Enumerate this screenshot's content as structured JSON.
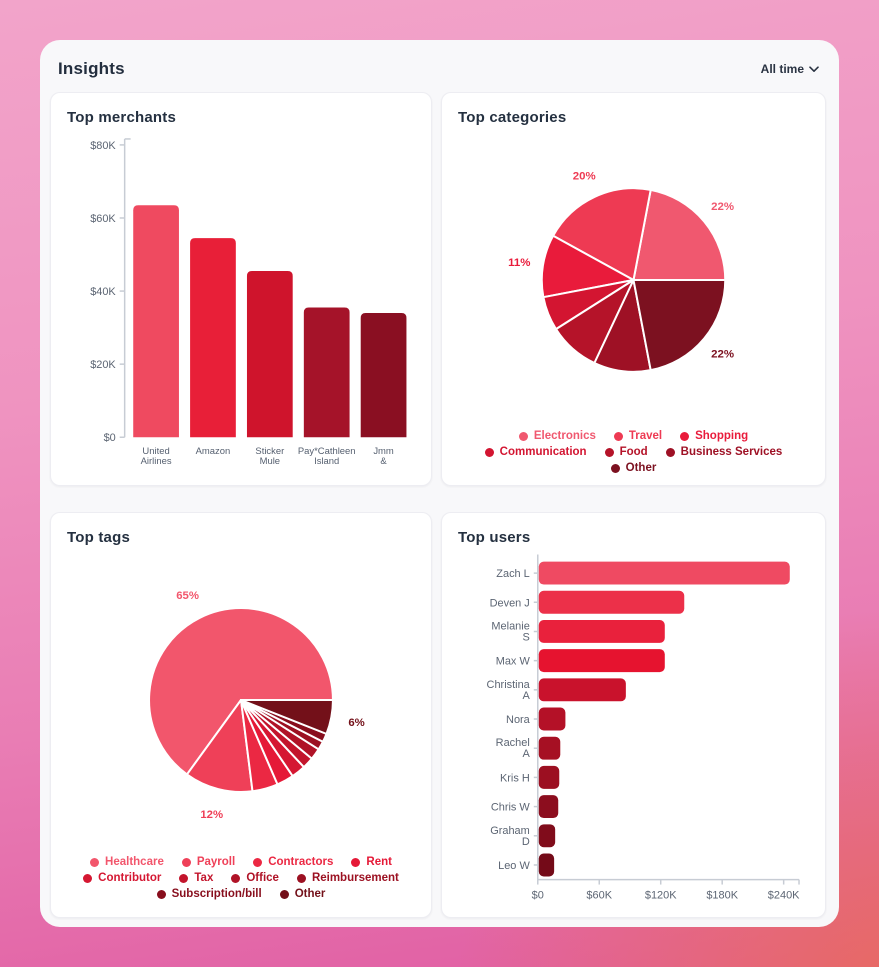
{
  "header": {
    "title": "Insights",
    "time_range": "All time"
  },
  "cards": {
    "merchants": {
      "title": "Top merchants"
    },
    "categories": {
      "title": "Top categories"
    },
    "tags": {
      "title": "Top tags"
    },
    "users": {
      "title": "Top users"
    }
  },
  "colors": {
    "panel_bg": "#F8F8FA",
    "card_bg": "#FFFFFF",
    "title_text": "#243040",
    "axis_text": "#5C6573",
    "accent_lightest": "#F2566C",
    "accent_darkest": "#740A18"
  },
  "chart_data": [
    {
      "id": "merchants",
      "type": "bar",
      "title": "Top merchants",
      "categories": [
        "United Airlines",
        "Amazon",
        "Sticker Mule",
        "Pay*Cathleen Island",
        "Jmm &"
      ],
      "category_lines": [
        [
          "United",
          "Airlines"
        ],
        [
          "Amazon"
        ],
        [
          "Sticker",
          "Mule"
        ],
        [
          "Pay*Cathleen",
          "Island"
        ],
        [
          "Jmm",
          "&"
        ]
      ],
      "values": [
        63.5,
        54.5,
        45.5,
        35.5,
        34
      ],
      "unit": "USD thousands",
      "ylim": [
        0,
        80
      ],
      "ytick_values": [
        0,
        20,
        40,
        60,
        80
      ],
      "ytick_labels": [
        "$0",
        "$20K",
        "$40K",
        "$60K",
        "$80K"
      ],
      "bar_colors": [
        "#EF4A60",
        "#E81F38",
        "#CF142C",
        "#A51329",
        "#8A0F22"
      ],
      "grid": false
    },
    {
      "id": "categories",
      "type": "pie",
      "title": "Top categories",
      "start_angle_deg_ccw_from_east": 0,
      "slices": [
        {
          "label": "Electronics",
          "value": 22,
          "color": "#F0586F",
          "display": "22%"
        },
        {
          "label": "Travel",
          "value": 20,
          "color": "#EE3A53",
          "display": "20%"
        },
        {
          "label": "Shopping",
          "value": 11,
          "color": "#E91B3B",
          "display": "11%"
        },
        {
          "label": "Communication",
          "value": 6,
          "color": "#D31531",
          "display": ""
        },
        {
          "label": "Food",
          "value": 9,
          "color": "#B51329",
          "display": ""
        },
        {
          "label": "Business Services",
          "value": 10,
          "color": "#9E1125",
          "display": ""
        },
        {
          "label": "Other",
          "value": 22,
          "color": "#7C1120",
          "display": "22%"
        }
      ],
      "legend_position": "bottom"
    },
    {
      "id": "tags",
      "type": "pie",
      "title": "Top tags",
      "start_angle_deg_ccw_from_east": 0,
      "slices": [
        {
          "label": "Healthcare",
          "value": 65,
          "color": "#F2566C",
          "display": "65%"
        },
        {
          "label": "Payroll",
          "value": 12,
          "color": "#EF4058",
          "display": "12%"
        },
        {
          "label": "Contractors",
          "value": 4.5,
          "color": "#EB2843",
          "display": ""
        },
        {
          "label": "Rent",
          "value": 3,
          "color": "#E51937",
          "display": ""
        },
        {
          "label": "Contributor",
          "value": 2.5,
          "color": "#D51732",
          "display": ""
        },
        {
          "label": "Tax",
          "value": 2,
          "color": "#C3152C",
          "display": ""
        },
        {
          "label": "Office",
          "value": 2,
          "color": "#B01327",
          "display": ""
        },
        {
          "label": "Reimbursement",
          "value": 1.5,
          "color": "#9C1122",
          "display": ""
        },
        {
          "label": "Subscription/bill",
          "value": 1.5,
          "color": "#880E1D",
          "display": ""
        },
        {
          "label": "Other",
          "value": 6,
          "color": "#731019",
          "display": "6%"
        }
      ],
      "legend_position": "bottom"
    },
    {
      "id": "users",
      "type": "bar-horizontal",
      "title": "Top users",
      "categories": [
        "Zach L",
        "Deven J",
        "Melanie S",
        "Max W",
        "Christina A",
        "Nora",
        "Rachel A",
        "Kris H",
        "Chris W",
        "Graham D",
        "Leo W"
      ],
      "category_lines": [
        [
          "Zach L"
        ],
        [
          "Deven J"
        ],
        [
          "Melanie",
          "S"
        ],
        [
          "Max W"
        ],
        [
          "Christina",
          "A"
        ],
        [
          "Nora"
        ],
        [
          "Rachel",
          "A"
        ],
        [
          "Kris H"
        ],
        [
          "Chris W"
        ],
        [
          "Graham",
          "D"
        ],
        [
          "Leo W"
        ]
      ],
      "values": [
        245,
        142,
        123,
        123,
        85,
        26,
        21,
        20,
        19,
        16,
        15
      ],
      "unit": "USD thousands",
      "xlim": [
        0,
        255
      ],
      "xtick_values": [
        0,
        60,
        120,
        180,
        240
      ],
      "xtick_labels": [
        "$0",
        "$60K",
        "$120K",
        "$180K",
        "$240K"
      ],
      "bar_colors": [
        "#EF4A62",
        "#EC3049",
        "#E9213C",
        "#E6132F",
        "#C9122C",
        "#B41127",
        "#A61023",
        "#9C0F21",
        "#8C0D1E",
        "#800C1B",
        "#740A18"
      ],
      "grid": false
    }
  ]
}
